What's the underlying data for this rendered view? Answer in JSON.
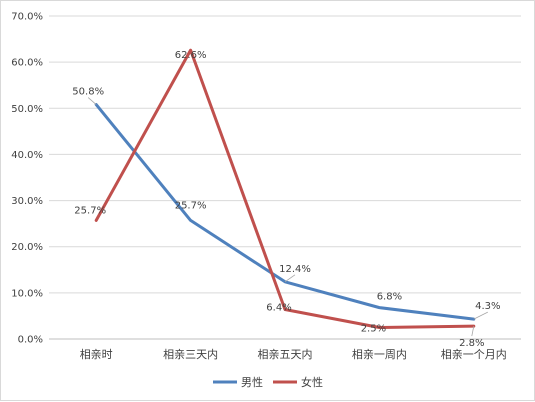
{
  "chart_data": {
    "type": "line",
    "title": "",
    "xlabel": "",
    "ylabel": "",
    "categories": [
      "相亲时",
      "相亲三天内",
      "相亲五天内",
      "相亲一周内",
      "相亲一个月内"
    ],
    "ylim": [
      0,
      70
    ],
    "yticks": [
      "0.0%",
      "10.0%",
      "20.0%",
      "30.0%",
      "40.0%",
      "50.0%",
      "60.0%",
      "70.0%"
    ],
    "grid": true,
    "legend_position": "bottom",
    "series": [
      {
        "name": "男性",
        "color": "#4f81bd",
        "values": [
          50.8,
          25.7,
          12.4,
          6.8,
          4.3
        ],
        "labels": [
          "50.8%",
          "25.7%",
          "12.4%",
          "6.8%",
          "4.3%"
        ]
      },
      {
        "name": "女性",
        "color": "#c0504d",
        "values": [
          25.7,
          62.6,
          6.4,
          2.5,
          2.8
        ],
        "labels": [
          "25.7%",
          "62.6%",
          "6.4%",
          "2.5%",
          "2.8%"
        ]
      }
    ]
  }
}
